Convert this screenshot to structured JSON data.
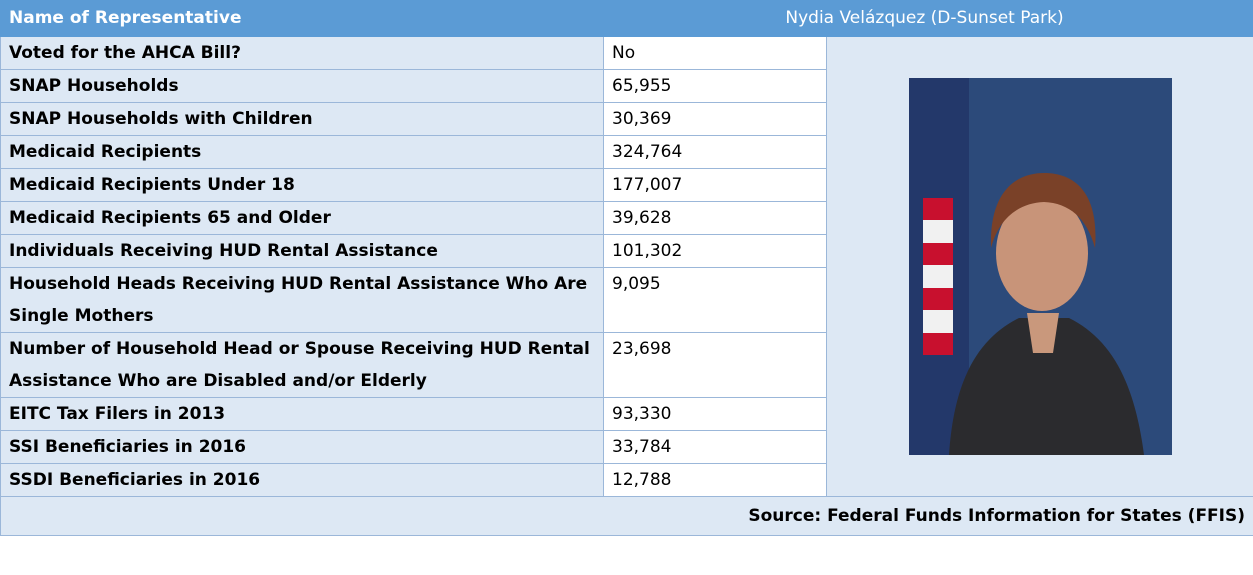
{
  "header": {
    "title": "Name of Representative",
    "name": "Nydia Velázquez (D-Sunset Park)"
  },
  "table": {
    "rows": [
      [
        "Voted for the AHCA Bill?",
        "No"
      ],
      [
        "SNAP Households",
        "65,955"
      ],
      [
        "SNAP Households with Children",
        "30,369"
      ],
      [
        "Medicaid Recipients",
        "324,764"
      ],
      [
        "Medicaid Recipients Under 18",
        "177,007"
      ],
      [
        "Medicaid Recipients 65 and Older",
        "39,628"
      ],
      [
        "Individuals Receiving HUD Rental Assistance",
        "101,302"
      ],
      [
        "Household Heads Receiving HUD Rental Assistance Who Are Single Mothers",
        "9,095"
      ],
      [
        "Number of Household Head or Spouse Receiving HUD Rental Assistance Who are Disabled and/or Elderly",
        "23,698"
      ],
      [
        "EITC Tax Filers in 2013",
        "93,330"
      ],
      [
        "SSI Beneficiaries in 2016",
        "33,784"
      ],
      [
        "SSDI Beneficiaries in 2016",
        "12,788"
      ]
    ]
  },
  "source": "Source: Federal Funds Information for States (FFIS)"
}
